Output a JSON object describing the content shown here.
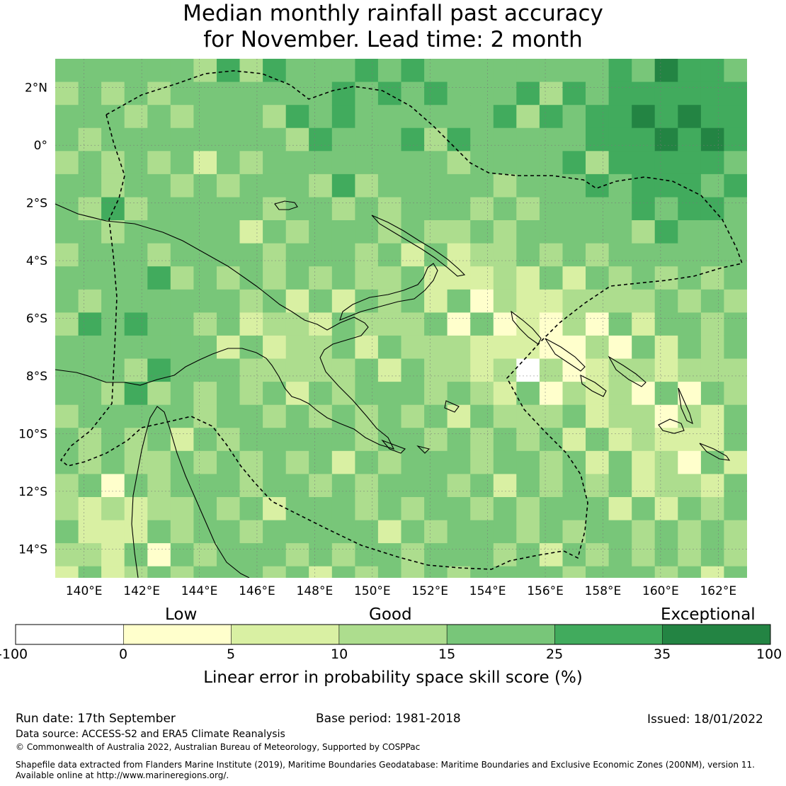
{
  "title": {
    "line1": "Median monthly rainfall past accuracy",
    "line2": "for November. Lead time: 2 month"
  },
  "map": {
    "lon_range": [
      139,
      163
    ],
    "lat_range": [
      -15,
      3
    ],
    "cell_deg": 0.8,
    "lon_ticks": [
      "140°E",
      "142°E",
      "144°E",
      "146°E",
      "148°E",
      "150°E",
      "152°E",
      "154°E",
      "156°E",
      "158°E",
      "160°E",
      "162°E"
    ],
    "lat_ticks": [
      "2°N",
      "0°",
      "2°S",
      "4°S",
      "6°S",
      "8°S",
      "10°S",
      "12°S",
      "14°S"
    ]
  },
  "legend": {
    "categories": [
      "Low",
      "Good",
      "Exceptional"
    ],
    "bounds": [
      "-100",
      "0",
      "5",
      "10",
      "15",
      "25",
      "35",
      "100"
    ],
    "colors": [
      "#ffffff",
      "#ffffcc",
      "#d9f0a3",
      "#addd8e",
      "#78c679",
      "#41ab5d",
      "#238443"
    ],
    "axis_title": "Linear error in probability space skill score (%)"
  },
  "footer": {
    "run_date": "Run date: 17th September",
    "base_period": "Base period: 1981-2018",
    "issued": "Issued: 18/01/2022",
    "data_source": "Data source: ACCESS-S2 and ERA5 Climate Reanalysis",
    "copyright": "© Commonwealth of Australia 2022, Australian Bureau of Meteorology, Supported by COSPPac",
    "shapefile_1": "Shapefile data extracted from Flanders Marine Institute (2019), Maritime Boundaries Geodatabase: Maritime Boundaries and Exclusive Economic Zones (200NM), version 11.",
    "shapefile_2": "Available online at http://www.marineregions.org/."
  }
}
